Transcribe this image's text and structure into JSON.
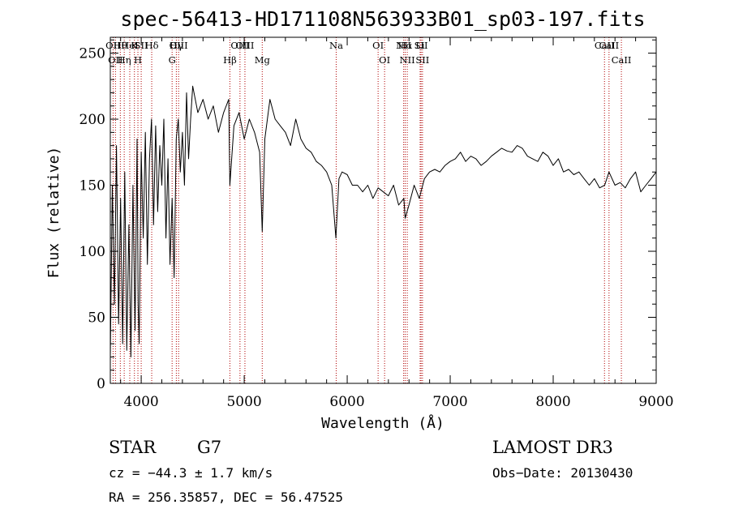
{
  "chart_data": {
    "type": "line",
    "title": "spec-56413-HD171108N563933B01_sp03-197.fits",
    "xlabel": "Wavelength (Å)",
    "ylabel": "Flux (relative)",
    "xlim": [
      3700,
      9000
    ],
    "ylim": [
      0,
      262
    ],
    "xticks": [
      4000,
      5000,
      6000,
      7000,
      8000,
      9000
    ],
    "yticks": [
      0,
      50,
      100,
      150,
      200,
      250
    ],
    "series": [
      {
        "x": [
          3700,
          3720,
          3740,
          3760,
          3780,
          3800,
          3820,
          3840,
          3860,
          3880,
          3900,
          3920,
          3940,
          3960,
          3970,
          3980,
          4000,
          4020,
          4040,
          4060,
          4080,
          4100,
          4120,
          4140,
          4160,
          4180,
          4200,
          4220,
          4240,
          4260,
          4280,
          4300,
          4320,
          4340,
          4360,
          4380,
          4400,
          4420,
          4440,
          4460,
          4480,
          4500,
          4550,
          4600,
          4650,
          4700,
          4750,
          4800,
          4850,
          4861,
          4900,
          4950,
          5000,
          5050,
          5100,
          5150,
          5175,
          5200,
          5250,
          5300,
          5350,
          5400,
          5450,
          5500,
          5550,
          5600,
          5650,
          5700,
          5750,
          5800,
          5850,
          5890,
          5920,
          5950,
          6000,
          6050,
          6100,
          6150,
          6200,
          6250,
          6300,
          6350,
          6400,
          6450,
          6500,
          6550,
          6563,
          6600,
          6650,
          6700,
          6750,
          6800,
          6850,
          6900,
          6950,
          7000,
          7050,
          7100,
          7150,
          7200,
          7250,
          7300,
          7350,
          7400,
          7450,
          7500,
          7550,
          7600,
          7650,
          7700,
          7750,
          7800,
          7850,
          7900,
          7950,
          8000,
          8050,
          8100,
          8150,
          8200,
          8250,
          8300,
          8350,
          8400,
          8450,
          8500,
          8542,
          8600,
          8650,
          8700,
          8750,
          8800,
          8850,
          8900,
          8950,
          9000
        ],
        "values": [
          20,
          150,
          60,
          180,
          45,
          140,
          30,
          160,
          25,
          120,
          20,
          150,
          40,
          185,
          60,
          30,
          175,
          110,
          190,
          90,
          170,
          200,
          120,
          195,
          130,
          180,
          150,
          200,
          110,
          170,
          90,
          140,
          80,
          185,
          200,
          160,
          190,
          150,
          220,
          170,
          200,
          225,
          205,
          215,
          200,
          210,
          190,
          205,
          215,
          150,
          195,
          205,
          185,
          200,
          190,
          175,
          115,
          185,
          215,
          200,
          195,
          190,
          180,
          200,
          185,
          178,
          175,
          168,
          165,
          160,
          150,
          110,
          155,
          160,
          158,
          150,
          150,
          145,
          150,
          140,
          148,
          145,
          142,
          150,
          135,
          140,
          125,
          135,
          150,
          140,
          155,
          160,
          162,
          160,
          165,
          168,
          170,
          175,
          168,
          172,
          170,
          165,
          168,
          172,
          175,
          178,
          176,
          175,
          180,
          178,
          172,
          170,
          168,
          175,
          172,
          165,
          170,
          160,
          162,
          158,
          160,
          155,
          150,
          155,
          148,
          150,
          160,
          150,
          152,
          148,
          155,
          160,
          145,
          150,
          155,
          160
        ]
      }
    ],
    "line_markers": [
      {
        "wl": 3727,
        "label": "OII",
        "row": 0
      },
      {
        "wl": 3750,
        "label": "OII",
        "row": 1
      },
      {
        "wl": 3797,
        "label": "Hθ",
        "row": 0
      },
      {
        "wl": 3835,
        "label": "Hη",
        "row": 1
      },
      {
        "wl": 3889,
        "label": "HeI",
        "row": 0
      },
      {
        "wl": 3934,
        "label": "K",
        "row": 0
      },
      {
        "wl": 3968,
        "label": "H",
        "row": 1
      },
      {
        "wl": 4000,
        "label": "SII",
        "row": 0
      },
      {
        "wl": 4102,
        "label": "Hδ",
        "row": 0
      },
      {
        "wl": 4300,
        "label": "G",
        "row": 1
      },
      {
        "wl": 4341,
        "label": "Hγ",
        "row": 0
      },
      {
        "wl": 4363,
        "label": "OIII",
        "row": 0
      },
      {
        "wl": 4861,
        "label": "Hβ",
        "row": 1
      },
      {
        "wl": 4959,
        "label": "OIII",
        "row": 0
      },
      {
        "wl": 5007,
        "label": "OIII",
        "row": 0
      },
      {
        "wl": 5175,
        "label": "Mg",
        "row": 1
      },
      {
        "wl": 5893,
        "label": "Na",
        "row": 0
      },
      {
        "wl": 6300,
        "label": "OI",
        "row": 0
      },
      {
        "wl": 6363,
        "label": "OI",
        "row": 1
      },
      {
        "wl": 6548,
        "label": "NII",
        "row": 0
      },
      {
        "wl": 6563,
        "label": "Hα",
        "row": 0
      },
      {
        "wl": 6583,
        "label": "NII",
        "row": 1
      },
      {
        "wl": 6708,
        "label": "Li",
        "row": 0
      },
      {
        "wl": 6717,
        "label": "SII",
        "row": 0
      },
      {
        "wl": 6731,
        "label": "SII",
        "row": 1
      },
      {
        "wl": 8498,
        "label": "CaII",
        "row": 0
      },
      {
        "wl": 8542,
        "label": "CaII",
        "row": 0
      },
      {
        "wl": 8662,
        "label": "CaII",
        "row": 1
      }
    ],
    "colors": {
      "spectrum": "#000000",
      "line_marker": "#b00000",
      "axes": "#000000"
    }
  },
  "info": {
    "class": "STAR",
    "subclass": "G7",
    "survey": "LAMOST DR3",
    "cz": "cz = −44.3 ± 1.7 km/s",
    "obs_date": "Obs−Date: 20130430",
    "radec": "RA = 256.35857, DEC =  56.47525"
  }
}
